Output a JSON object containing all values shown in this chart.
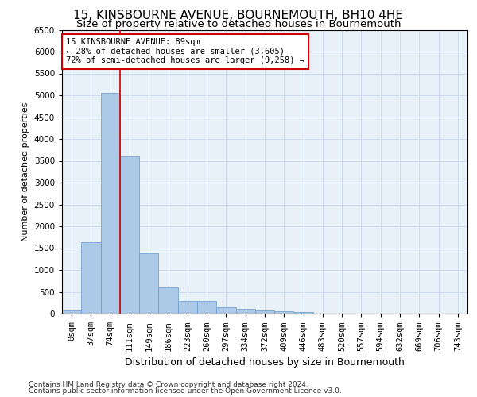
{
  "title1": "15, KINSBOURNE AVENUE, BOURNEMOUTH, BH10 4HE",
  "title2": "Size of property relative to detached houses in Bournemouth",
  "xlabel": "Distribution of detached houses by size in Bournemouth",
  "ylabel": "Number of detached properties",
  "bar_color": "#adc9e8",
  "bar_edge_color": "#6699cc",
  "grid_color": "#c8d8ea",
  "background_color": "#e8f0f8",
  "bin_labels": [
    "0sqm",
    "37sqm",
    "74sqm",
    "111sqm",
    "149sqm",
    "186sqm",
    "223sqm",
    "260sqm",
    "297sqm",
    "334sqm",
    "372sqm",
    "409sqm",
    "446sqm",
    "483sqm",
    "520sqm",
    "557sqm",
    "594sqm",
    "632sqm",
    "669sqm",
    "706sqm",
    "743sqm"
  ],
  "bar_values": [
    75,
    1640,
    5050,
    3600,
    1380,
    600,
    290,
    290,
    145,
    110,
    80,
    55,
    30,
    0,
    0,
    0,
    0,
    0,
    0,
    0,
    0
  ],
  "ylim": [
    0,
    6500
  ],
  "yticks": [
    0,
    500,
    1000,
    1500,
    2000,
    2500,
    3000,
    3500,
    4000,
    4500,
    5000,
    5500,
    6000,
    6500
  ],
  "property_bin_index": 2,
  "annotation_text": "15 KINSBOURNE AVENUE: 89sqm\n← 28% of detached houses are smaller (3,605)\n72% of semi-detached houses are larger (9,258) →",
  "annotation_box_color": "#ffffff",
  "annotation_box_edge_color": "#cc0000",
  "vline_color": "#cc0000",
  "footer1": "Contains HM Land Registry data © Crown copyright and database right 2024.",
  "footer2": "Contains public sector information licensed under the Open Government Licence v3.0.",
  "title1_fontsize": 11,
  "title2_fontsize": 9.5,
  "xlabel_fontsize": 9,
  "ylabel_fontsize": 8,
  "tick_fontsize": 7.5,
  "annotation_fontsize": 7.5,
  "footer_fontsize": 6.5
}
